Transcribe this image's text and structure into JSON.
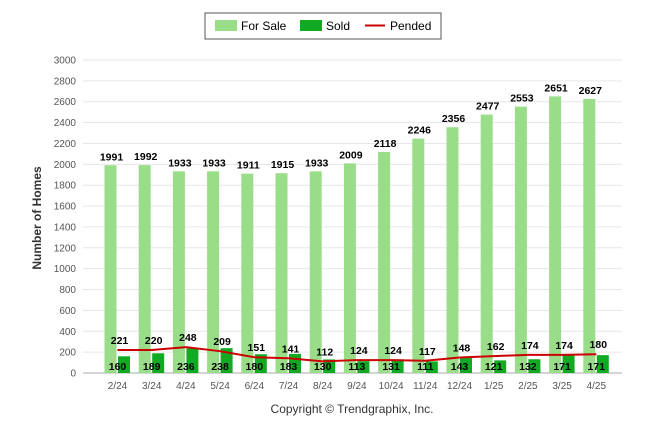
{
  "chart_data": {
    "type": "bar",
    "categories": [
      "2/24",
      "3/24",
      "4/24",
      "5/24",
      "6/24",
      "7/24",
      "8/24",
      "9/24",
      "10/24",
      "11/24",
      "12/24",
      "1/25",
      "2/25",
      "3/25",
      "4/25"
    ],
    "series": [
      {
        "name": "For Sale",
        "type": "bar",
        "color": "#99dd88",
        "values": [
          1991,
          1992,
          1933,
          1933,
          1911,
          1915,
          1933,
          2009,
          2118,
          2246,
          2356,
          2477,
          2553,
          2651,
          2627
        ]
      },
      {
        "name": "Sold",
        "type": "bar",
        "color": "#11aa22",
        "values": [
          160,
          189,
          236,
          238,
          180,
          183,
          130,
          113,
          131,
          111,
          143,
          121,
          132,
          171,
          171
        ]
      },
      {
        "name": "Pended",
        "type": "line",
        "color": "#cc0000",
        "values": [
          221,
          220,
          248,
          209,
          151,
          141,
          112,
          124,
          124,
          117,
          148,
          162,
          174,
          174,
          180
        ]
      }
    ],
    "ylabel": "Number of Homes",
    "ylim": [
      0,
      3000
    ],
    "yticks": [
      0,
      200,
      400,
      600,
      800,
      1000,
      1200,
      1400,
      1600,
      1800,
      2000,
      2200,
      2400,
      2600,
      2800,
      3000
    ],
    "grid": true,
    "legend_position": "top-center"
  },
  "footer": {
    "copyright": "Copyright © Trendgraphix, Inc."
  }
}
